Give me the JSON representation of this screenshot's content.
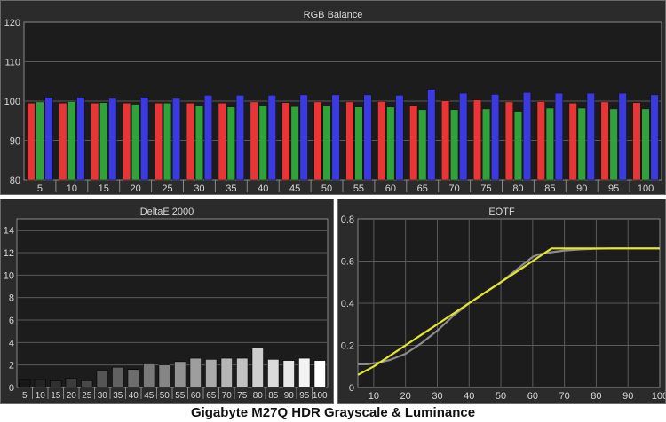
{
  "caption": "Gigabyte M27Q HDR Grayscale & Luminance",
  "colors": {
    "red": "#e83535",
    "green": "#2fa33a",
    "blue": "#3a3ae0",
    "panel_bg": "#2b2b2b",
    "plot_bg": "#1c1c1c",
    "eotf_target": "#8c8c8c",
    "eotf_measured": "#e6e62a"
  },
  "chart_data": [
    {
      "type": "bar",
      "title": "RGB Balance",
      "categories": [
        "5",
        "10",
        "15",
        "20",
        "25",
        "30",
        "35",
        "40",
        "45",
        "50",
        "55",
        "60",
        "65",
        "70",
        "75",
        "80",
        "85",
        "90",
        "95",
        "100"
      ],
      "ylim": [
        80,
        120
      ],
      "yticks": [
        "80",
        "90",
        "100",
        "110",
        "120"
      ],
      "grid": true,
      "series": [
        {
          "color": "red",
          "values": [
            99.5,
            99.5,
            99.5,
            99.5,
            99.5,
            99.5,
            99.5,
            99.8,
            99.6,
            99.8,
            99.8,
            99.9,
            98.9,
            100.1,
            100.3,
            99.8,
            99.9,
            99.5,
            99.8,
            99.6
          ]
        },
        {
          "color": "green",
          "values": [
            99.8,
            99.9,
            99.6,
            99.2,
            99.5,
            98.8,
            98.5,
            98.8,
            98.6,
            98.7,
            98.5,
            98.5,
            97.8,
            97.8,
            98.0,
            97.4,
            98.2,
            98.2,
            98.0,
            98.0
          ]
        },
        {
          "color": "blue",
          "values": [
            101.0,
            101.0,
            100.7,
            101.0,
            100.7,
            101.5,
            101.5,
            101.5,
            101.6,
            101.6,
            101.6,
            101.5,
            103.0,
            102.0,
            101.7,
            102.2,
            102.0,
            102.0,
            102.0,
            101.6
          ]
        }
      ]
    },
    {
      "type": "bar",
      "title": "DeltaE 2000",
      "categories": [
        "5",
        "10",
        "15",
        "20",
        "25",
        "30",
        "35",
        "40",
        "45",
        "50",
        "55",
        "60",
        "65",
        "70",
        "75",
        "80",
        "85",
        "90",
        "95",
        "100"
      ],
      "ylim": [
        0,
        15
      ],
      "yticks": [
        "0",
        "2",
        "4",
        "6",
        "8",
        "10",
        "12",
        "14"
      ],
      "grid": true,
      "values": [
        0.7,
        0.7,
        0.6,
        0.8,
        0.6,
        1.5,
        1.8,
        1.6,
        2.1,
        2.0,
        2.3,
        2.6,
        2.5,
        2.6,
        2.6,
        3.5,
        2.5,
        2.4,
        2.6,
        2.4
      ]
    },
    {
      "type": "line",
      "title": "EOTF",
      "xlim": [
        5,
        100
      ],
      "ylim": [
        0,
        0.8
      ],
      "xticks": [
        "10",
        "20",
        "30",
        "40",
        "50",
        "60",
        "70",
        "80",
        "90",
        "100"
      ],
      "yticks": [
        "0",
        "0.2",
        "0.4",
        "0.6",
        "0.8"
      ],
      "grid": true,
      "series": [
        {
          "color": "eotf_target",
          "x": [
            5,
            8,
            10,
            12,
            15,
            20,
            25,
            30,
            35,
            40,
            45,
            50,
            55,
            60,
            62,
            65,
            70,
            75,
            80,
            85,
            90,
            95,
            100
          ],
          "y": [
            0.11,
            0.11,
            0.115,
            0.12,
            0.13,
            0.16,
            0.21,
            0.27,
            0.34,
            0.4,
            0.45,
            0.5,
            0.56,
            0.62,
            0.632,
            0.64,
            0.65,
            0.655,
            0.658,
            0.66,
            0.66,
            0.66,
            0.66
          ]
        },
        {
          "color": "eotf_measured",
          "x": [
            5,
            10,
            15,
            20,
            25,
            30,
            35,
            40,
            45,
            50,
            55,
            60,
            65,
            66,
            70,
            75,
            80,
            85,
            90,
            95,
            100
          ],
          "y": [
            0.06,
            0.1,
            0.15,
            0.2,
            0.25,
            0.3,
            0.35,
            0.4,
            0.45,
            0.5,
            0.55,
            0.6,
            0.65,
            0.66,
            0.66,
            0.66,
            0.66,
            0.66,
            0.66,
            0.66,
            0.66
          ]
        }
      ]
    }
  ]
}
